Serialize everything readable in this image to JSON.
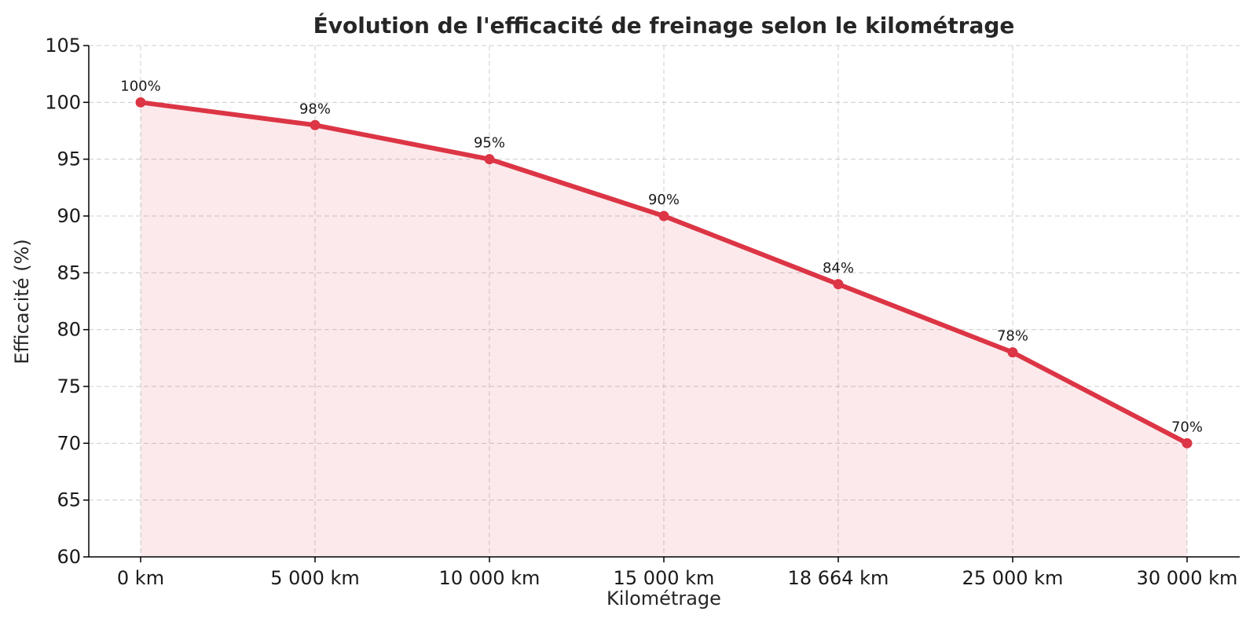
{
  "chart_data": {
    "type": "area",
    "title": "Évolution de l'efficacité de freinage selon le kilométrage",
    "xlabel": "Kilométrage",
    "ylabel": "Efficacité (%)",
    "categories": [
      "0 km",
      "5 000 km",
      "10 000 km",
      "15 000 km",
      "18 664 km",
      "25 000 km",
      "30 000 km"
    ],
    "values": [
      100,
      98,
      95,
      90,
      84,
      78,
      70
    ],
    "data_labels": [
      "100%",
      "98%",
      "95%",
      "90%",
      "84%",
      "78%",
      "70%"
    ],
    "ylim": [
      60,
      105
    ],
    "yticks": [
      60,
      65,
      70,
      75,
      80,
      85,
      90,
      95,
      100,
      105
    ],
    "grid": true,
    "line_color": "#dc3545",
    "fill_color": "#dc3545"
  }
}
